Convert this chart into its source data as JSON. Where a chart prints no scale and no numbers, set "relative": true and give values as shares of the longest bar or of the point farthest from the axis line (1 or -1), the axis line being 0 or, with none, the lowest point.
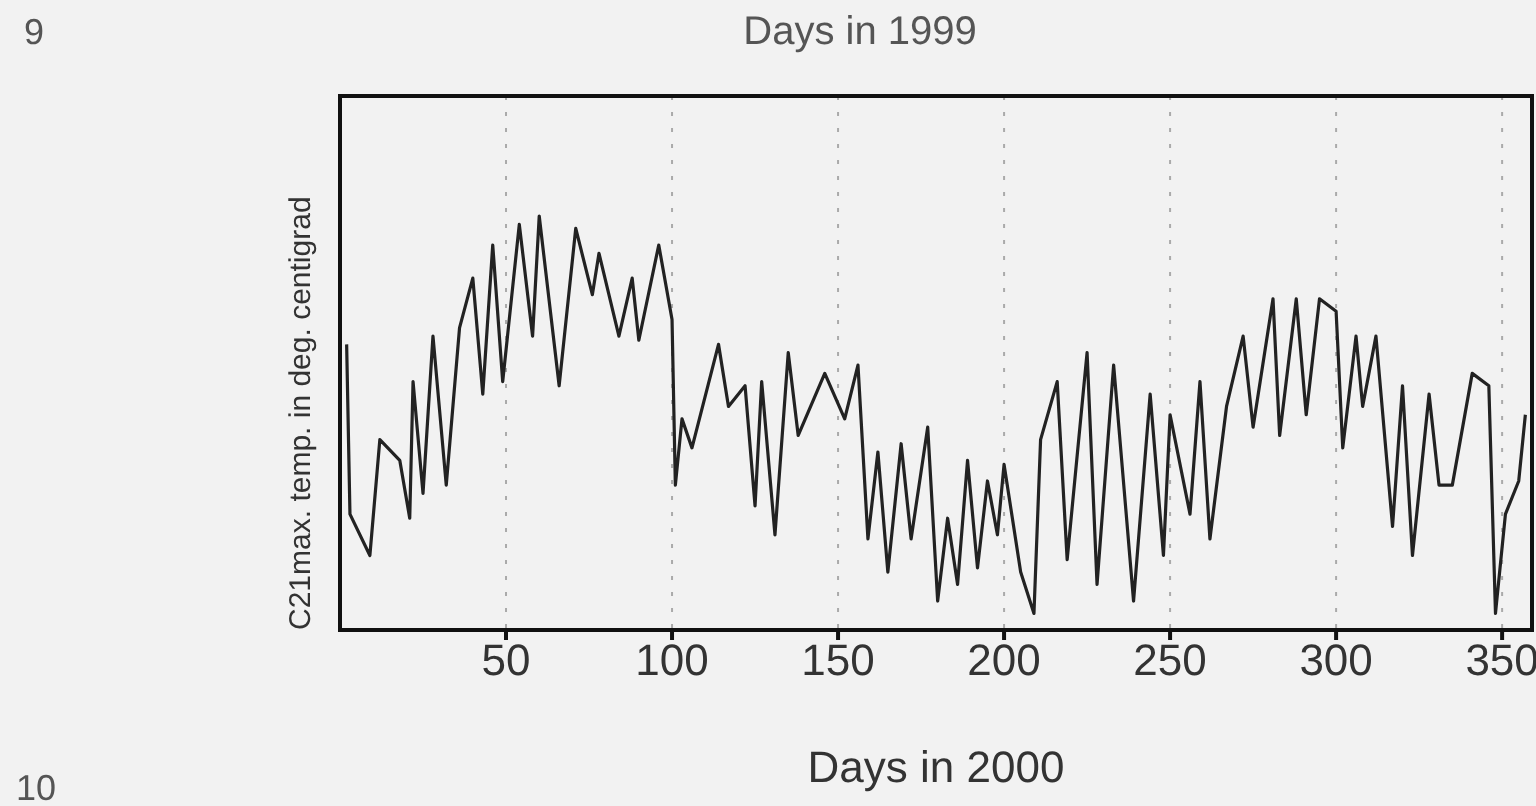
{
  "chart_data": {
    "type": "line",
    "relative": true,
    "xlabel": "Days in 2000",
    "ylabel": "C21max. temp. in deg. centigrad",
    "annotations": [
      "Days in 1999",
      "9",
      "10"
    ],
    "xlim": [
      0,
      359
    ],
    "xticks": [
      50,
      100,
      150,
      200,
      250,
      300,
      350
    ],
    "grid": "x",
    "line_style": "solid",
    "series": [
      {
        "color": "#222222",
        "x": [
          2,
          3,
          9,
          12,
          18,
          21,
          22,
          25,
          28,
          32,
          36,
          40,
          43,
          46,
          49,
          54,
          58,
          60,
          66,
          71,
          76,
          78,
          84,
          88,
          90,
          96,
          100,
          101,
          103,
          106,
          114,
          117,
          122,
          125,
          127,
          131,
          135,
          138,
          146,
          152,
          156,
          159,
          162,
          165,
          169,
          172,
          177,
          180,
          183,
          186,
          189,
          192,
          195,
          198,
          200,
          205,
          209,
          211,
          216,
          219,
          225,
          228,
          233,
          239,
          244,
          248,
          250,
          256,
          259,
          262,
          267,
          272,
          275,
          281,
          283,
          288,
          291,
          295,
          300,
          302,
          306,
          308,
          312,
          317,
          320,
          323,
          328,
          331,
          335,
          341,
          346,
          348,
          351,
          355,
          357
        ],
        "values": [
          0.69,
          0.28,
          0.18,
          0.46,
          0.41,
          0.27,
          0.6,
          0.33,
          0.71,
          0.35,
          0.73,
          0.85,
          0.57,
          0.93,
          0.6,
          0.98,
          0.71,
          1,
          0.59,
          0.97,
          0.81,
          0.91,
          0.71,
          0.85,
          0.7,
          0.93,
          0.75,
          0.35,
          0.51,
          0.44,
          0.69,
          0.54,
          0.59,
          0.3,
          0.6,
          0.23,
          0.67,
          0.47,
          0.62,
          0.51,
          0.64,
          0.22,
          0.43,
          0.14,
          0.45,
          0.22,
          0.49,
          0.07,
          0.27,
          0.11,
          0.41,
          0.15,
          0.36,
          0.23,
          0.4,
          0.14,
          0.04,
          0.46,
          0.6,
          0.17,
          0.67,
          0.11,
          0.64,
          0.07,
          0.57,
          0.18,
          0.52,
          0.28,
          0.6,
          0.22,
          0.54,
          0.71,
          0.49,
          0.8,
          0.47,
          0.8,
          0.52,
          0.8,
          0.77,
          0.44,
          0.71,
          0.54,
          0.71,
          0.25,
          0.59,
          0.18,
          0.57,
          0.35,
          0.35,
          0.62,
          0.59,
          0.04,
          0.28,
          0.36,
          0.52
        ]
      }
    ]
  }
}
